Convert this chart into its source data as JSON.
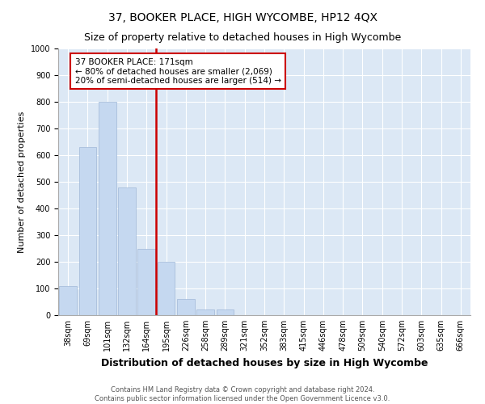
{
  "title": "37, BOOKER PLACE, HIGH WYCOMBE, HP12 4QX",
  "subtitle": "Size of property relative to detached houses in High Wycombe",
  "xlabel": "Distribution of detached houses by size in High Wycombe",
  "ylabel": "Number of detached properties",
  "categories": [
    "38sqm",
    "69sqm",
    "101sqm",
    "132sqm",
    "164sqm",
    "195sqm",
    "226sqm",
    "258sqm",
    "289sqm",
    "321sqm",
    "352sqm",
    "383sqm",
    "415sqm",
    "446sqm",
    "478sqm",
    "509sqm",
    "540sqm",
    "572sqm",
    "603sqm",
    "635sqm",
    "666sqm"
  ],
  "values": [
    110,
    630,
    800,
    480,
    250,
    200,
    60,
    20,
    20,
    0,
    0,
    0,
    0,
    0,
    0,
    0,
    0,
    0,
    0,
    0,
    0
  ],
  "bar_color": "#c5d8f0",
  "bar_edge_color": "#a0b8d8",
  "vline_x_index": 4,
  "vline_color": "#cc0000",
  "annotation_text": "37 BOOKER PLACE: 171sqm\n← 80% of detached houses are smaller (2,069)\n20% of semi-detached houses are larger (514) →",
  "annotation_box_color": "#ffffff",
  "annotation_box_edge_color": "#cc0000",
  "ylim": [
    0,
    1000
  ],
  "yticks": [
    0,
    100,
    200,
    300,
    400,
    500,
    600,
    700,
    800,
    900,
    1000
  ],
  "background_color": "#dce8f5",
  "footer_line1": "Contains HM Land Registry data © Crown copyright and database right 2024.",
  "footer_line2": "Contains public sector information licensed under the Open Government Licence v3.0.",
  "title_fontsize": 10,
  "subtitle_fontsize": 9,
  "xlabel_fontsize": 9,
  "ylabel_fontsize": 8,
  "tick_fontsize": 7,
  "footer_fontsize": 6
}
